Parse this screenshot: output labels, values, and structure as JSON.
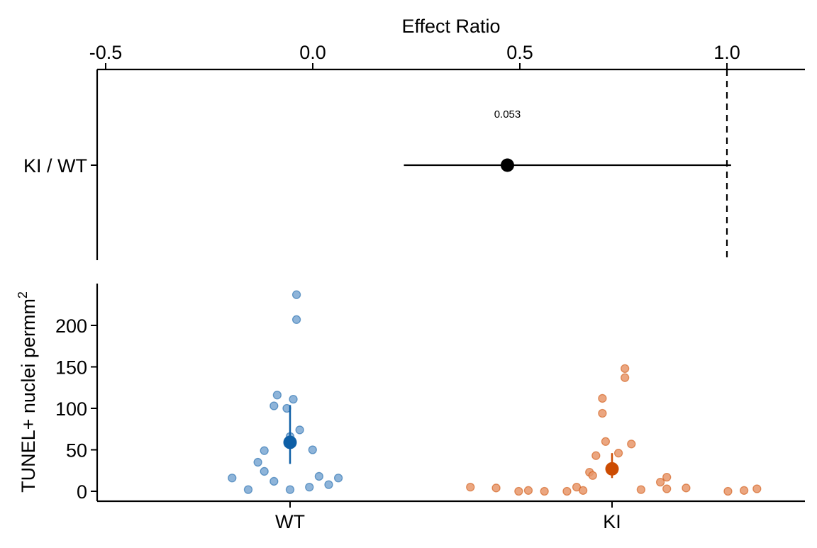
{
  "chart_data": [
    {
      "type": "scatter",
      "panel": "effect-size",
      "title": "",
      "xlabel": "Effect Ratio",
      "x_axis_position": "top",
      "xlim": [
        -0.52,
        1.19
      ],
      "x_ticks": [
        -0.5,
        0.0,
        0.5,
        1.0
      ],
      "x_tick_labels": [
        "-0.5",
        "0.0",
        "0.5",
        "1.0"
      ],
      "categories": [
        "KI / WT"
      ],
      "estimate": 0.47,
      "ci": [
        0.22,
        1.01
      ],
      "reference_line": 1.0,
      "annotation": "0.053",
      "grid": false
    },
    {
      "type": "scatter",
      "panel": "raw-data",
      "title": "",
      "ylabel": "TUNEL+ nuclei permm",
      "ylabel_superscript": "2",
      "ylim": [
        -10,
        247
      ],
      "y_ticks": [
        0,
        50,
        100,
        150,
        200
      ],
      "y_tick_labels": [
        "0",
        "50",
        "100",
        "150",
        "200"
      ],
      "categories": [
        "WT",
        "KI"
      ],
      "grid": false,
      "colors": {
        "WT": "#0e5fa6",
        "KI": "#cc4c02",
        "WT_points": "#7aa7d2",
        "KI_points": "#e8966a"
      },
      "series": [
        {
          "name": "WT",
          "mean": 59,
          "ci": [
            33,
            104
          ],
          "points": [
            {
              "offset": 0.02,
              "y": 237
            },
            {
              "offset": 0.02,
              "y": 207
            },
            {
              "offset": -0.04,
              "y": 116
            },
            {
              "offset": 0.01,
              "y": 111
            },
            {
              "offset": -0.05,
              "y": 103
            },
            {
              "offset": -0.01,
              "y": 100
            },
            {
              "offset": 0.03,
              "y": 74
            },
            {
              "offset": 0.0,
              "y": 66
            },
            {
              "offset": 0.07,
              "y": 50
            },
            {
              "offset": -0.08,
              "y": 49
            },
            {
              "offset": -0.1,
              "y": 35
            },
            {
              "offset": -0.08,
              "y": 24
            },
            {
              "offset": 0.09,
              "y": 18
            },
            {
              "offset": -0.18,
              "y": 16
            },
            {
              "offset": 0.15,
              "y": 16
            },
            {
              "offset": -0.05,
              "y": 12
            },
            {
              "offset": 0.12,
              "y": 8
            },
            {
              "offset": 0.06,
              "y": 5
            },
            {
              "offset": -0.13,
              "y": 2
            },
            {
              "offset": 0.0,
              "y": 2
            }
          ]
        },
        {
          "name": "KI",
          "mean": 27,
          "ci": [
            16,
            46
          ],
          "points": [
            {
              "offset": 0.04,
              "y": 148
            },
            {
              "offset": 0.04,
              "y": 137
            },
            {
              "offset": -0.03,
              "y": 112
            },
            {
              "offset": -0.03,
              "y": 94
            },
            {
              "offset": -0.02,
              "y": 60
            },
            {
              "offset": 0.06,
              "y": 57
            },
            {
              "offset": 0.02,
              "y": 46
            },
            {
              "offset": -0.05,
              "y": 43
            },
            {
              "offset": -0.07,
              "y": 23
            },
            {
              "offset": -0.06,
              "y": 19
            },
            {
              "offset": 0.17,
              "y": 17
            },
            {
              "offset": 0.15,
              "y": 11
            },
            {
              "offset": -0.44,
              "y": 5
            },
            {
              "offset": -0.36,
              "y": 4
            },
            {
              "offset": 0.23,
              "y": 4
            },
            {
              "offset": -0.11,
              "y": 5
            },
            {
              "offset": 0.17,
              "y": 3
            },
            {
              "offset": 0.09,
              "y": 2
            },
            {
              "offset": 0.45,
              "y": 3
            },
            {
              "offset": -0.29,
              "y": 0
            },
            {
              "offset": -0.26,
              "y": 1
            },
            {
              "offset": -0.21,
              "y": 0
            },
            {
              "offset": -0.14,
              "y": 0
            },
            {
              "offset": -0.09,
              "y": 1
            },
            {
              "offset": 0.36,
              "y": 0
            },
            {
              "offset": 0.41,
              "y": 1
            }
          ]
        }
      ]
    }
  ]
}
